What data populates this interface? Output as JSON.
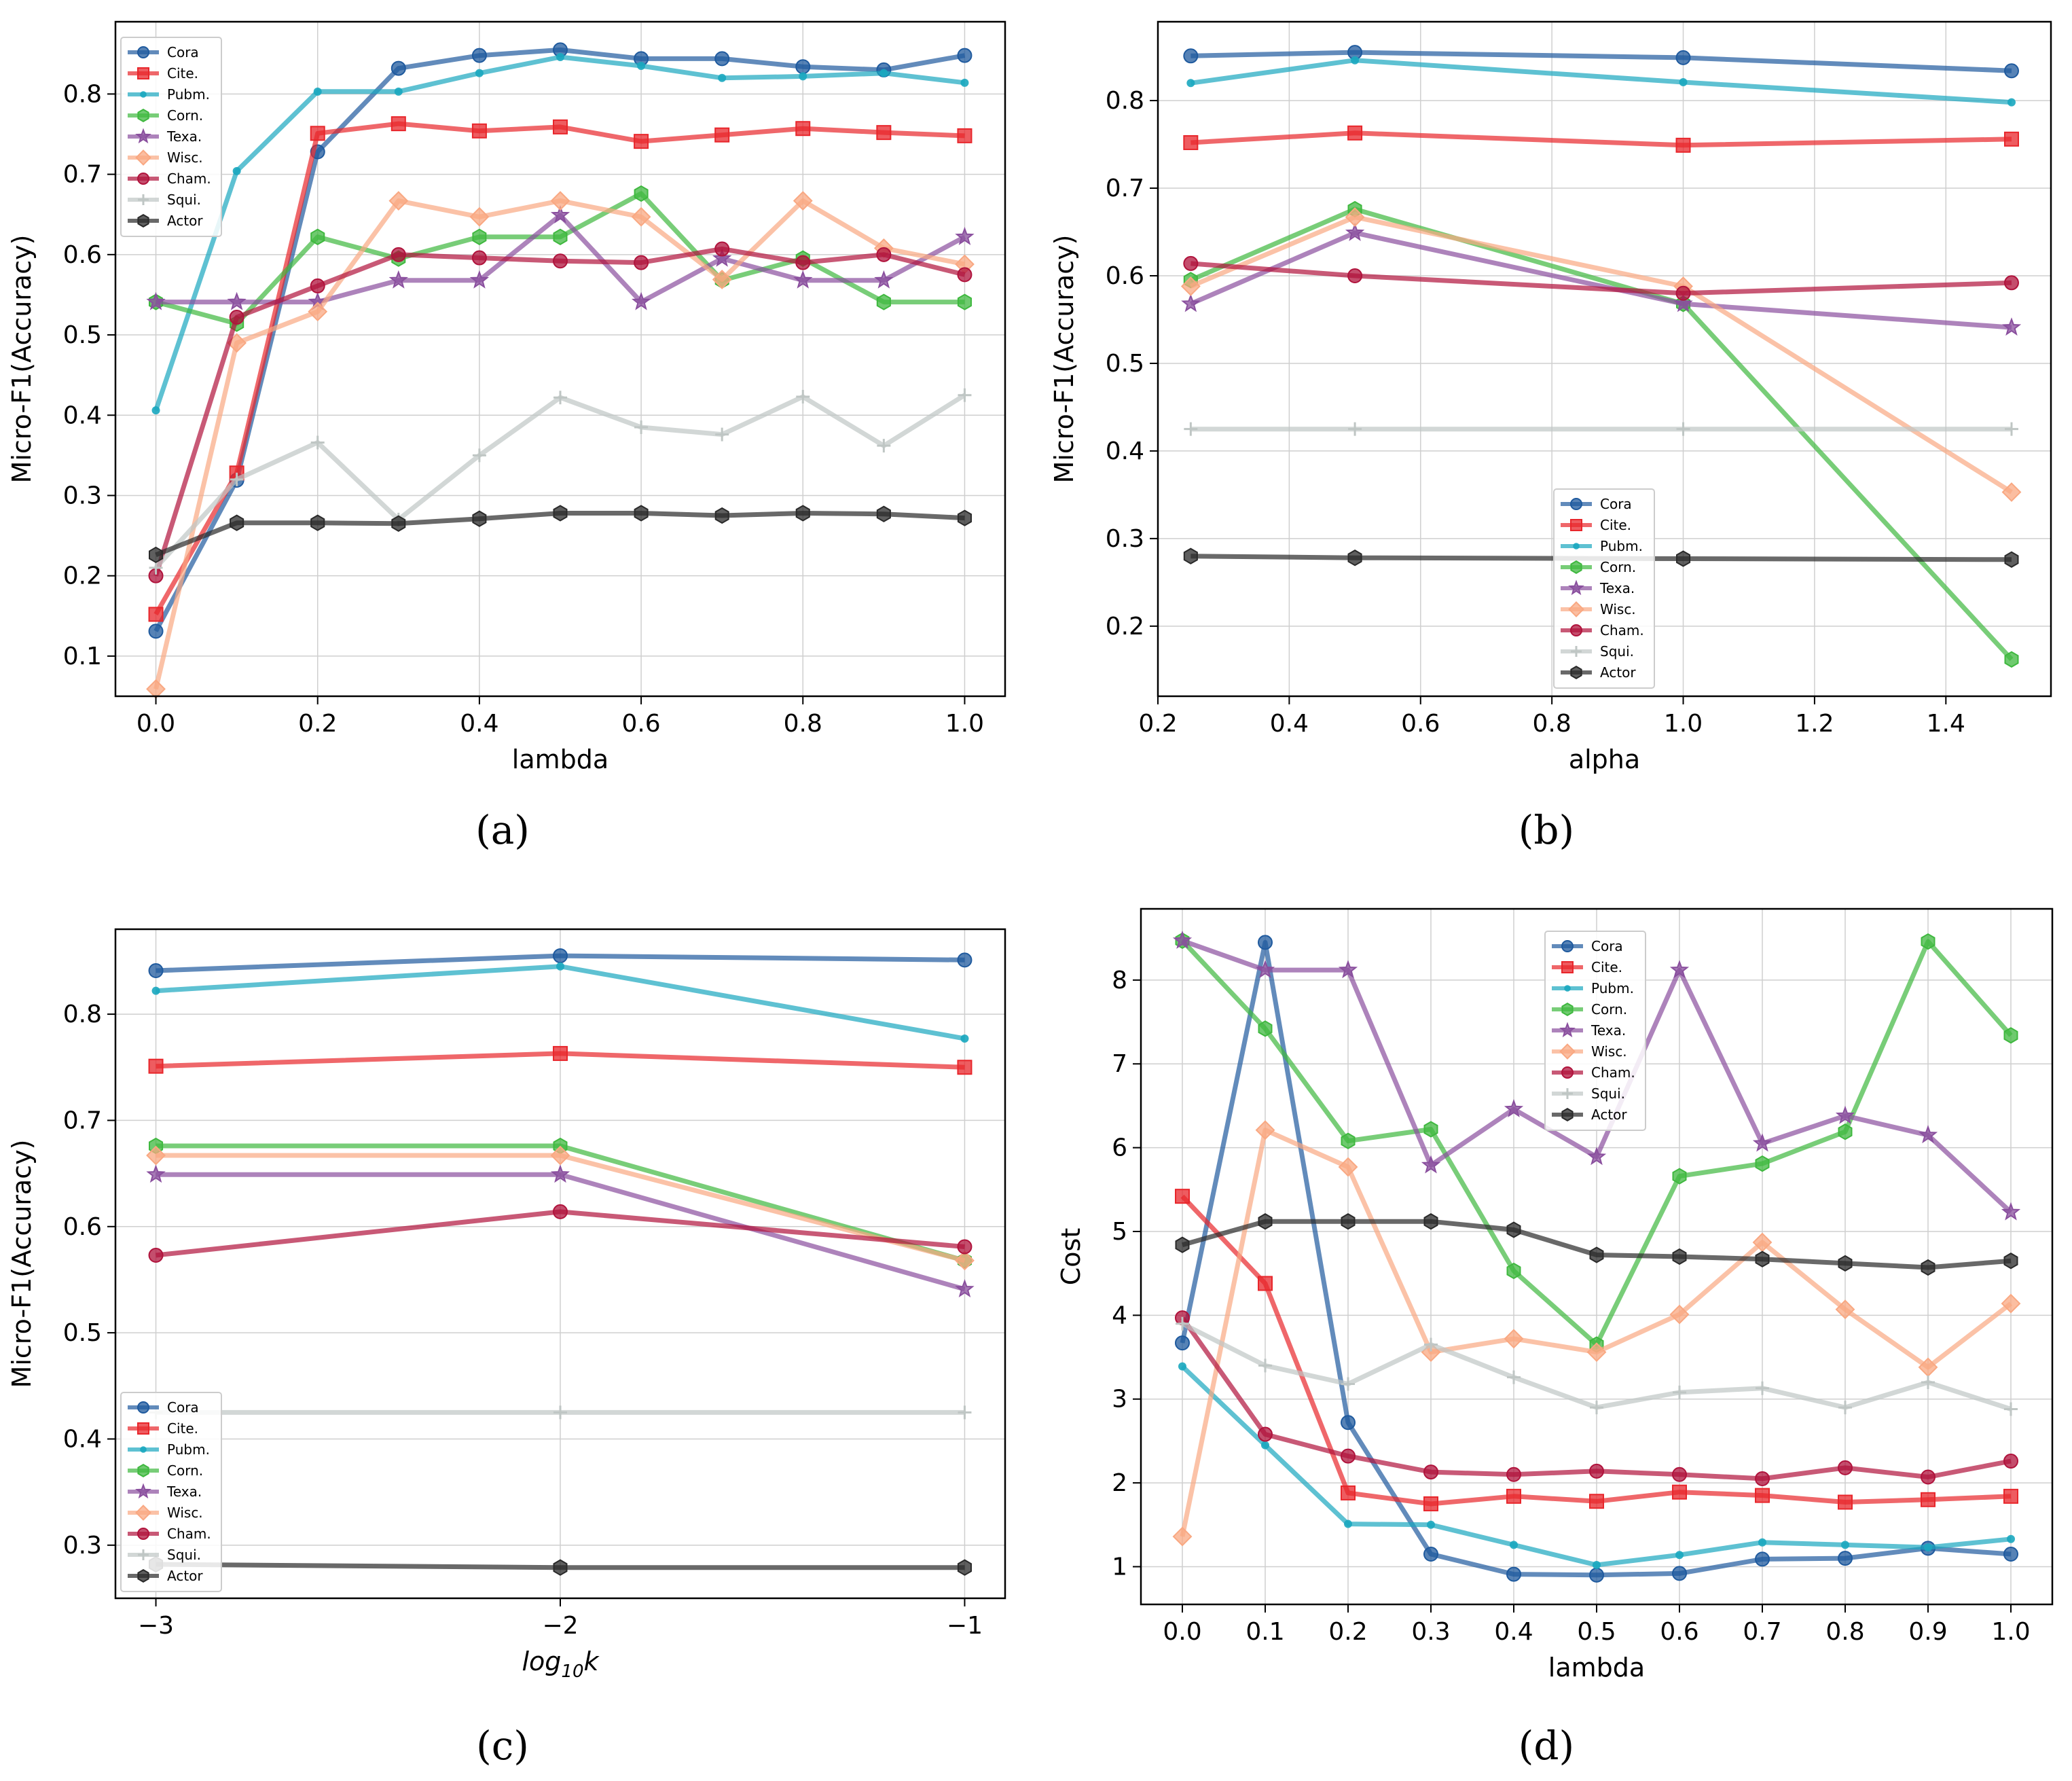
{
  "colors": {
    "Cora": "#1f5a9e",
    "Cite.": "#e8262b",
    "Pubm.": "#1aa7bf",
    "Corn.": "#3fb83f",
    "Texa.": "#8a4f9e",
    "Wisc.": "#f9a882",
    "Cham.": "#b0133c",
    "Squi.": "#bfc6c4",
    "Actor": "#2a2a2a"
  },
  "markers": {
    "Cora": "circle",
    "Cite.": "square",
    "Pubm.": "dot",
    "Corn.": "hexagon",
    "Texa.": "star",
    "Wisc.": "diamond",
    "Cham.": "circle",
    "Squi.": "plus",
    "Actor": "hexagon"
  },
  "chart_data": [
    {
      "panel": "(a)",
      "type": "line",
      "xlabel": "lambda",
      "ylabel": "Micro-F1(Accuracy)",
      "xlim": [
        -0.05,
        1.05
      ],
      "ylim": [
        0.05,
        0.89
      ],
      "xticks": [
        0.0,
        0.2,
        0.4,
        0.6,
        0.8,
        1.0
      ],
      "xtick_labels": [
        "0.0",
        "0.2",
        "0.4",
        "0.6",
        "0.8",
        "1.0"
      ],
      "yticks": [
        0.1,
        0.2,
        0.3,
        0.4,
        0.5,
        0.6,
        0.7,
        0.8
      ],
      "ytick_labels": [
        "0.1",
        "0.2",
        "0.3",
        "0.4",
        "0.5",
        "0.6",
        "0.7",
        "0.8"
      ],
      "legend_position": "top-left",
      "x": [
        0.0,
        0.1,
        0.2,
        0.3,
        0.4,
        0.5,
        0.6,
        0.7,
        0.8,
        0.9,
        1.0
      ],
      "series": [
        {
          "name": "Cora",
          "values": [
            0.131,
            0.319,
            0.728,
            0.832,
            0.848,
            0.855,
            0.844,
            0.844,
            0.834,
            0.83,
            0.848
          ]
        },
        {
          "name": "Cite.",
          "values": [
            0.152,
            0.328,
            0.751,
            0.763,
            0.754,
            0.759,
            0.741,
            0.749,
            0.757,
            0.752,
            0.748
          ]
        },
        {
          "name": "Pubm.",
          "values": [
            0.406,
            0.704,
            0.803,
            0.803,
            0.826,
            0.846,
            0.835,
            0.82,
            0.822,
            0.826,
            0.814
          ]
        },
        {
          "name": "Corn.",
          "values": [
            0.541,
            0.514,
            0.622,
            0.595,
            0.622,
            0.622,
            0.676,
            0.568,
            0.595,
            0.541,
            0.541
          ]
        },
        {
          "name": "Texa.",
          "values": [
            0.541,
            0.541,
            0.541,
            0.568,
            0.568,
            0.649,
            0.541,
            0.595,
            0.568,
            0.568,
            0.622
          ]
        },
        {
          "name": "Wisc.",
          "values": [
            0.059,
            0.49,
            0.529,
            0.667,
            0.647,
            0.667,
            0.647,
            0.569,
            0.667,
            0.608,
            0.588
          ]
        },
        {
          "name": "Cham.",
          "values": [
            0.2,
            0.522,
            0.561,
            0.6,
            0.596,
            0.592,
            0.59,
            0.607,
            0.59,
            0.6,
            0.575
          ]
        },
        {
          "name": "Squi.",
          "values": [
            0.21,
            0.32,
            0.366,
            0.27,
            0.35,
            0.422,
            0.385,
            0.376,
            0.423,
            0.362,
            0.425
          ]
        },
        {
          "name": "Actor",
          "values": [
            0.226,
            0.266,
            0.266,
            0.265,
            0.271,
            0.278,
            0.278,
            0.275,
            0.278,
            0.277,
            0.272
          ]
        }
      ]
    },
    {
      "panel": "(b)",
      "type": "line",
      "xlabel": "alpha",
      "ylabel": "Micro-F1(Accuracy)",
      "xlim": [
        0.2,
        1.56
      ],
      "ylim": [
        0.12,
        0.89
      ],
      "xticks": [
        0.2,
        0.4,
        0.6,
        0.8,
        1.0,
        1.2,
        1.4
      ],
      "xtick_labels": [
        "0.2",
        "0.4",
        "0.6",
        "0.8",
        "1.0",
        "1.2",
        "1.4"
      ],
      "yticks": [
        0.2,
        0.3,
        0.4,
        0.5,
        0.6,
        0.7,
        0.8
      ],
      "ytick_labels": [
        "0.2",
        "0.3",
        "0.4",
        "0.5",
        "0.6",
        "0.7",
        "0.8"
      ],
      "legend_position": "lower-center",
      "x": [
        0.25,
        0.5,
        1.0,
        1.5
      ],
      "series": [
        {
          "name": "Cora",
          "values": [
            0.851,
            0.855,
            0.849,
            0.834
          ]
        },
        {
          "name": "Cite.",
          "values": [
            0.752,
            0.763,
            0.749,
            0.756
          ]
        },
        {
          "name": "Pubm.",
          "values": [
            0.82,
            0.846,
            0.821,
            0.798
          ]
        },
        {
          "name": "Corn.",
          "values": [
            0.595,
            0.676,
            0.568,
            0.162
          ]
        },
        {
          "name": "Texa.",
          "values": [
            0.568,
            0.649,
            0.568,
            0.541
          ]
        },
        {
          "name": "Wisc.",
          "values": [
            0.588,
            0.667,
            0.588,
            0.353
          ]
        },
        {
          "name": "Cham.",
          "values": [
            0.614,
            0.6,
            0.58,
            0.592
          ]
        },
        {
          "name": "Squi.",
          "values": [
            0.425,
            0.425,
            0.425,
            0.425
          ]
        },
        {
          "name": "Actor",
          "values": [
            0.28,
            0.278,
            0.277,
            0.276
          ]
        }
      ]
    },
    {
      "panel": "(c)",
      "type": "line",
      "xlabel": "log10k",
      "ylabel": "Micro-F1(Accuracy)",
      "xlim": [
        -3.1,
        -0.9
      ],
      "ylim": [
        0.25,
        0.88
      ],
      "xticks": [
        -3,
        -2,
        -1
      ],
      "xtick_labels": [
        "−3",
        "−2",
        "−1"
      ],
      "yticks": [
        0.3,
        0.4,
        0.5,
        0.6,
        0.7,
        0.8
      ],
      "ytick_labels": [
        "0.3",
        "0.4",
        "0.5",
        "0.6",
        "0.7",
        "0.8"
      ],
      "legend_position": "lower-left",
      "x": [
        -3,
        -2,
        -1
      ],
      "series": [
        {
          "name": "Cora",
          "values": [
            0.841,
            0.855,
            0.851
          ]
        },
        {
          "name": "Cite.",
          "values": [
            0.751,
            0.763,
            0.75
          ]
        },
        {
          "name": "Pubm.",
          "values": [
            0.822,
            0.845,
            0.777
          ]
        },
        {
          "name": "Corn.",
          "values": [
            0.676,
            0.676,
            0.568
          ]
        },
        {
          "name": "Texa.",
          "values": [
            0.649,
            0.649,
            0.541
          ]
        },
        {
          "name": "Wisc.",
          "values": [
            0.667,
            0.667,
            0.568
          ]
        },
        {
          "name": "Cham.",
          "values": [
            0.573,
            0.614,
            0.581
          ]
        },
        {
          "name": "Squi.",
          "values": [
            0.425,
            0.425,
            0.425
          ]
        },
        {
          "name": "Actor",
          "values": [
            0.282,
            0.279,
            0.279
          ]
        }
      ]
    },
    {
      "panel": "(d)",
      "type": "line",
      "xlabel": "lambda",
      "ylabel": "Cost",
      "xlim": [
        -0.05,
        1.05
      ],
      "ylim": [
        0.55,
        8.85
      ],
      "xticks": [
        0.0,
        0.1,
        0.2,
        0.3,
        0.4,
        0.5,
        0.6,
        0.7,
        0.8,
        0.9,
        1.0
      ],
      "xtick_labels": [
        "0.0",
        "0.1",
        "0.2",
        "0.3",
        "0.4",
        "0.5",
        "0.6",
        "0.7",
        "0.8",
        "0.9",
        "1.0"
      ],
      "yticks": [
        1,
        2,
        3,
        4,
        5,
        6,
        7,
        8
      ],
      "ytick_labels": [
        "1",
        "2",
        "3",
        "4",
        "5",
        "6",
        "7",
        "8"
      ],
      "legend_position": "top-center",
      "x": [
        0.0,
        0.1,
        0.2,
        0.3,
        0.4,
        0.5,
        0.6,
        0.7,
        0.8,
        0.9,
        1.0
      ],
      "series": [
        {
          "name": "Cora",
          "values": [
            3.67,
            8.45,
            2.72,
            1.15,
            0.91,
            0.9,
            0.92,
            1.09,
            1.1,
            1.22,
            1.15
          ]
        },
        {
          "name": "Cite.",
          "values": [
            5.42,
            4.38,
            1.88,
            1.75,
            1.84,
            1.78,
            1.89,
            1.85,
            1.77,
            1.8,
            1.84
          ]
        },
        {
          "name": "Pubm.",
          "values": [
            3.39,
            2.45,
            1.51,
            1.5,
            1.26,
            1.02,
            1.14,
            1.29,
            1.26,
            1.23,
            1.33
          ]
        },
        {
          "name": "Corn.",
          "values": [
            8.47,
            7.42,
            6.08,
            6.22,
            4.53,
            3.65,
            5.66,
            5.81,
            6.19,
            8.46,
            7.34
          ]
        },
        {
          "name": "Texa.",
          "values": [
            8.47,
            8.12,
            8.12,
            5.79,
            6.46,
            5.89,
            8.12,
            6.05,
            6.38,
            6.15,
            5.23
          ]
        },
        {
          "name": "Wisc.",
          "values": [
            1.36,
            6.21,
            5.77,
            3.56,
            3.72,
            3.56,
            4.01,
            4.87,
            4.07,
            3.38,
            4.14
          ]
        },
        {
          "name": "Cham.",
          "values": [
            3.97,
            2.58,
            2.32,
            2.13,
            2.1,
            2.14,
            2.1,
            2.05,
            2.18,
            2.07,
            2.26
          ]
        },
        {
          "name": "Squi.",
          "values": [
            3.9,
            3.4,
            3.18,
            3.65,
            3.26,
            2.9,
            3.08,
            3.13,
            2.9,
            3.2,
            2.88
          ]
        },
        {
          "name": "Actor",
          "values": [
            4.84,
            5.12,
            5.12,
            5.12,
            5.02,
            4.72,
            4.7,
            4.67,
            4.62,
            4.57,
            4.65
          ]
        }
      ]
    }
  ]
}
